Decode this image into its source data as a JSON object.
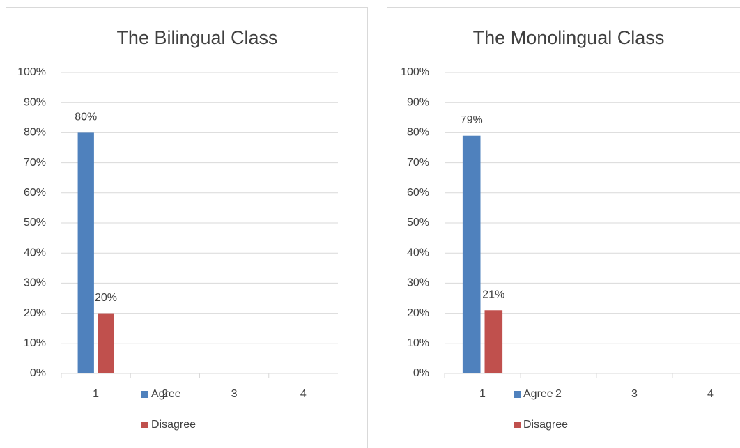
{
  "chart_data": [
    {
      "type": "bar",
      "title": "The Bilingual Class",
      "categories": [
        "1",
        "2",
        "3",
        "4"
      ],
      "series": [
        {
          "name": "Agree",
          "color": "#4f81bd",
          "values": [
            80,
            null,
            null,
            null
          ],
          "value_labels": [
            "80%",
            null,
            null,
            null
          ]
        },
        {
          "name": "Disagree",
          "color": "#c0504d",
          "values": [
            20,
            null,
            null,
            null
          ],
          "value_labels": [
            "20%",
            null,
            null,
            null
          ]
        }
      ],
      "ylim": [
        0,
        100
      ],
      "yticks": [
        {
          "value": 0,
          "label": "0%"
        },
        {
          "value": 10,
          "label": "10%"
        },
        {
          "value": 20,
          "label": "20%"
        },
        {
          "value": 30,
          "label": "30%"
        },
        {
          "value": 40,
          "label": "40%"
        },
        {
          "value": 50,
          "label": "50%"
        },
        {
          "value": 60,
          "label": "60%"
        },
        {
          "value": 70,
          "label": "70%"
        },
        {
          "value": 80,
          "label": "80%"
        },
        {
          "value": 90,
          "label": "90%"
        },
        {
          "value": 100,
          "label": "100%"
        }
      ],
      "grid": true
    },
    {
      "type": "bar",
      "title": "The Monolingual Class",
      "categories": [
        "1",
        "2",
        "3",
        "4"
      ],
      "series": [
        {
          "name": "Agree",
          "color": "#4f81bd",
          "values": [
            79,
            null,
            null,
            null
          ],
          "value_labels": [
            "79%",
            null,
            null,
            null
          ]
        },
        {
          "name": "Disagree",
          "color": "#c0504d",
          "values": [
            21,
            null,
            null,
            null
          ],
          "value_labels": [
            "21%",
            null,
            null,
            null
          ]
        }
      ],
      "ylim": [
        0,
        100
      ],
      "yticks": [
        {
          "value": 0,
          "label": "0%"
        },
        {
          "value": 10,
          "label": "10%"
        },
        {
          "value": 20,
          "label": "20%"
        },
        {
          "value": 30,
          "label": "30%"
        },
        {
          "value": 40,
          "label": "40%"
        },
        {
          "value": 50,
          "label": "50%"
        },
        {
          "value": 60,
          "label": "60%"
        },
        {
          "value": 70,
          "label": "70%"
        },
        {
          "value": 80,
          "label": "80%"
        },
        {
          "value": 90,
          "label": "90%"
        },
        {
          "value": 100,
          "label": "100%"
        }
      ],
      "grid": true
    }
  ]
}
